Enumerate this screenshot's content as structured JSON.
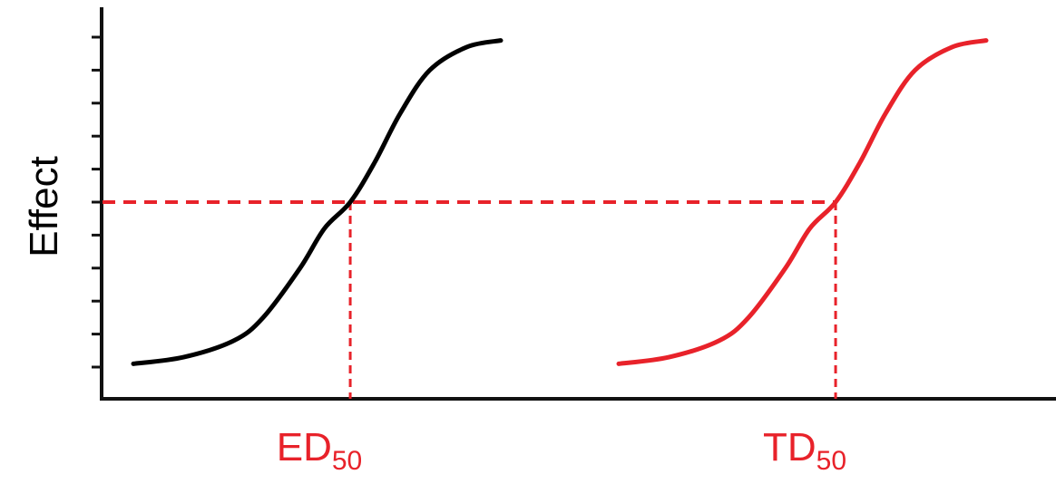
{
  "chart_data": {
    "type": "line",
    "ylabel": "Effect",
    "y_tick_count": 11,
    "ylim": [
      0,
      1
    ],
    "x_scale": "log",
    "grid": false,
    "series": [
      {
        "x": [
          0.05,
          0.1,
          0.2,
          0.3,
          0.5,
          0.7,
          1.0,
          1.4,
          2.0,
          3.0,
          5.0,
          8.0
        ],
        "y": [
          0.01,
          0.03,
          0.08,
          0.15,
          0.3,
          0.42,
          0.5,
          0.62,
          0.77,
          0.9,
          0.97,
          0.99
        ],
        "color": "#000000"
      },
      {
        "x": [
          0.5,
          1.0,
          2.0,
          3.0,
          5.0,
          7.0,
          10.0,
          14.0,
          20.0,
          30.0,
          50.0,
          80.0
        ],
        "y": [
          0.01,
          0.03,
          0.08,
          0.15,
          0.3,
          0.42,
          0.5,
          0.62,
          0.77,
          0.9,
          0.97,
          0.99
        ],
        "color": "#e8222a"
      }
    ],
    "annotations": [
      {
        "label_main": "ED",
        "label_sub": "50",
        "x": 1.0,
        "y": 0.5
      },
      {
        "label_main": "TD",
        "label_sub": "50",
        "x": 10.0,
        "y": 0.5
      }
    ],
    "reference_line": {
      "y": 0.5,
      "color": "#e8222a",
      "style": "dashed"
    }
  }
}
